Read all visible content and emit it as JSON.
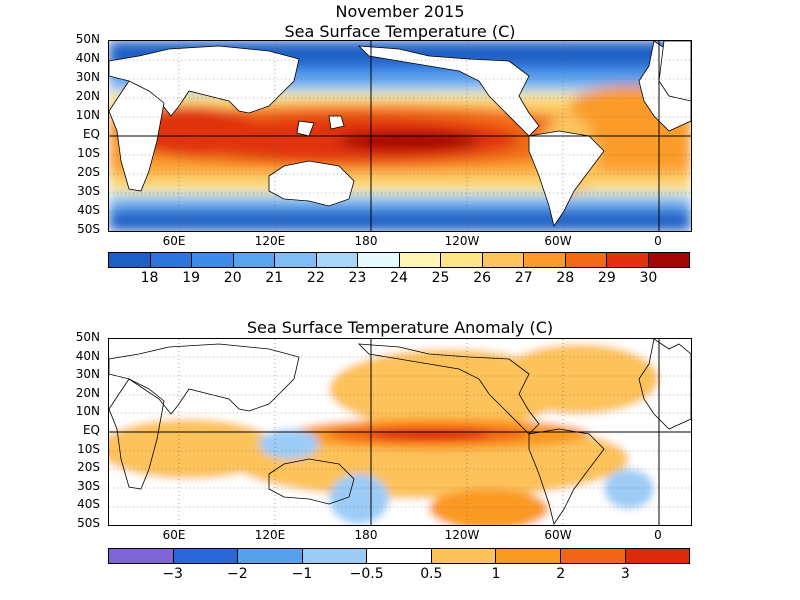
{
  "figure": {
    "title": "November 2015"
  },
  "panels": [
    {
      "title": "Sea Surface Temperature (C)",
      "lat_labels": [
        "50N",
        "40N",
        "30N",
        "20N",
        "10N",
        "EQ",
        "10S",
        "20S",
        "30S",
        "40S",
        "50S"
      ],
      "lon_labels": [
        "60E",
        "120E",
        "180",
        "120W",
        "60W",
        "0"
      ],
      "colorbar": {
        "colors": [
          "#1b5fc4",
          "#2d74dc",
          "#3f8be8",
          "#5aa3ee",
          "#7ebcf3",
          "#a9d6f6",
          "#e6f9fd",
          "#fdf6b6",
          "#fde587",
          "#fdc45d",
          "#fb9b2c",
          "#f26b14",
          "#e0300c",
          "#a40606"
        ],
        "labels": [
          "18",
          "19",
          "20",
          "21",
          "22",
          "23",
          "24",
          "25",
          "26",
          "27",
          "28",
          "29",
          "30"
        ]
      }
    },
    {
      "title": "Sea Surface Temperature Anomaly (C)",
      "lat_labels": [
        "50N",
        "40N",
        "30N",
        "20N",
        "10N",
        "EQ",
        "10S",
        "20S",
        "30S",
        "40S",
        "50S"
      ],
      "lon_labels": [
        "60E",
        "120E",
        "180",
        "120W",
        "60W",
        "0"
      ],
      "colorbar": {
        "colors": [
          "#7f65d6",
          "#2a67d8",
          "#56a0ec",
          "#9cccf6",
          "#ffffff",
          "#fdc25a",
          "#fb9a22",
          "#f26418",
          "#dc2a0c"
        ],
        "labels": [
          "−3",
          "−2",
          "−1",
          "−0.5",
          "0.5",
          "1",
          "2",
          "3"
        ]
      }
    }
  ]
}
